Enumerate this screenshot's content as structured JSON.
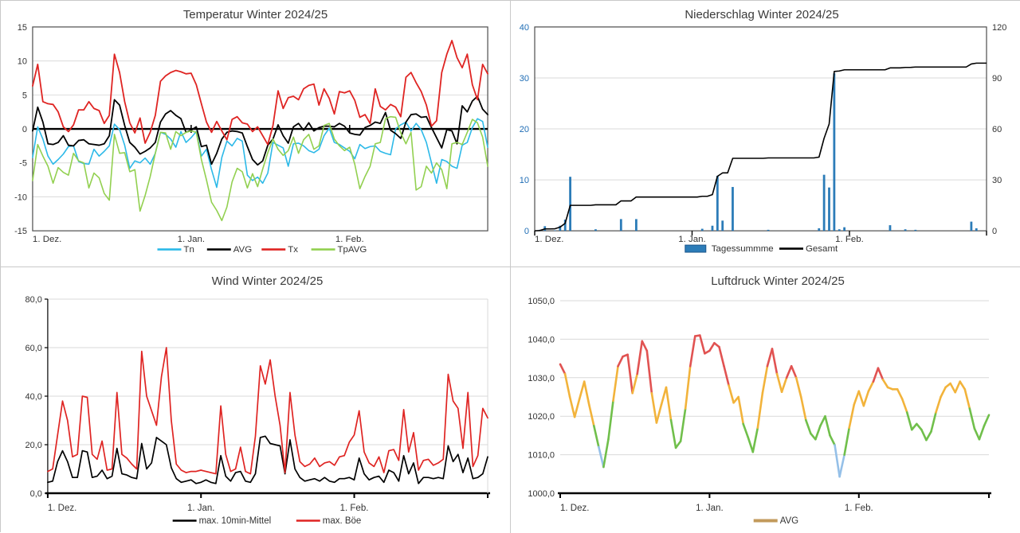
{
  "chart_data": [
    {
      "type": "line",
      "title": "Temperatur Winter 2024/25",
      "x_tick_labels": [
        "1. Dez.",
        "1. Jan.",
        "1. Feb."
      ],
      "x_tick_days": [
        0,
        31,
        62
      ],
      "n_days": 90,
      "ylim": [
        -15,
        15
      ],
      "yticks": [
        {
          "v": 15,
          "label": "15"
        },
        {
          "v": 10,
          "label": "10"
        },
        {
          "v": 5,
          "label": "5"
        },
        {
          "v": 0,
          "label": "0"
        },
        {
          "v": -5,
          "label": "-5"
        },
        {
          "v": -10,
          "label": "-10"
        },
        {
          "v": -15,
          "label": "-15"
        }
      ],
      "zero_line": true,
      "grid_color": "#d9d9d9",
      "series": [
        {
          "name": "Tn",
          "color": "#2cb9e8",
          "width": 1.6,
          "values": [
            -4.2,
            0.3,
            -1.5,
            -4.0,
            -5.2,
            -4.5,
            -3.7,
            -2.6,
            -2.5,
            -4.8,
            -5.1,
            -5.2,
            -3.0,
            -4.0,
            -3.3,
            -2.5,
            0.7,
            -0.1,
            -2.4,
            -5.8,
            -4.7,
            -5.0,
            -4.3,
            -5.2,
            -3.6,
            -0.5,
            -0.8,
            -1.5,
            -2.7,
            -0.4,
            -2.0,
            -1.3,
            -0.4,
            -4.0,
            -3.0,
            -6.0,
            -8.6,
            -4.2,
            -1.8,
            -2.5,
            -1.4,
            -1.8,
            -6.8,
            -7.6,
            -7.1,
            -8.0,
            -6.5,
            -2.0,
            -2.4,
            -2.8,
            -5.5,
            -2.2,
            -2.1,
            -2.5,
            -3.2,
            -3.5,
            -3.0,
            -1.0,
            0.1,
            -2.0,
            -2.3,
            -2.8,
            -3.3,
            -4.4,
            -2.3,
            -2.9,
            -2.6,
            -2.5,
            -3.3,
            -3.6,
            -3.8,
            0.0,
            0.6,
            1.0,
            -0.3,
            0.8,
            -0.1,
            -2.0,
            -5.0,
            -8.0,
            -4.5,
            -4.8,
            -5.5,
            -5.8,
            -2.4,
            -2.0,
            0.2,
            1.5,
            1.1,
            -2.7
          ]
        },
        {
          "name": "AVG",
          "color": "#000000",
          "width": 1.8,
          "values": [
            -0.3,
            3.2,
            1.0,
            -2.2,
            -2.3,
            -2.0,
            -1.0,
            -2.4,
            -2.5,
            -1.7,
            -1.6,
            -2.2,
            -2.3,
            -2.4,
            -2.2,
            -1.0,
            4.3,
            3.5,
            0.5,
            -2.0,
            -2.7,
            -3.7,
            -3.3,
            -2.8,
            -2.0,
            1.0,
            2.2,
            2.7,
            2.0,
            1.5,
            -0.5,
            -0.2,
            0.3,
            -2.6,
            -2.4,
            -5.2,
            -3.6,
            -1.5,
            -0.5,
            -0.3,
            -0.4,
            -0.6,
            -2.6,
            -4.5,
            -5.3,
            -4.7,
            -2.4,
            -1.5,
            0.6,
            -1.0,
            -2.1,
            0.3,
            0.8,
            -0.2,
            0.9,
            -0.3,
            0.2,
            0.4,
            0.4,
            0.3,
            0.8,
            0.4,
            -0.6,
            -0.8,
            -0.9,
            0.2,
            0.5,
            1.0,
            0.8,
            2.4,
            -0.2,
            -0.7,
            -1.4,
            1.0,
            2.1,
            2.2,
            1.7,
            1.8,
            0.2,
            -1.3,
            -2.8,
            -0.1,
            -0.3,
            -2.2,
            3.4,
            2.5,
            4.1,
            4.8,
            2.9,
            2.1
          ]
        },
        {
          "name": "Tx",
          "color": "#df2422",
          "width": 1.8,
          "values": [
            6.3,
            9.5,
            4.0,
            3.7,
            3.6,
            2.5,
            0.3,
            -0.4,
            0.6,
            2.8,
            2.8,
            4.0,
            3.0,
            2.7,
            0.8,
            2.0,
            11.0,
            8.3,
            4.0,
            0.9,
            -0.6,
            1.6,
            -2.1,
            -0.5,
            2.0,
            7.0,
            7.8,
            8.3,
            8.6,
            8.4,
            8.1,
            8.2,
            6.5,
            3.7,
            1.0,
            -0.5,
            1.1,
            -0.3,
            -1.6,
            1.4,
            1.8,
            0.9,
            0.7,
            -0.4,
            0.3,
            -1.0,
            -2.3,
            0.5,
            5.6,
            3.0,
            4.6,
            4.8,
            4.3,
            5.9,
            6.4,
            6.6,
            3.5,
            5.9,
            4.5,
            2.2,
            5.5,
            5.3,
            5.6,
            4.2,
            1.7,
            2.1,
            0.8,
            5.9,
            3.3,
            2.8,
            3.6,
            3.2,
            1.8,
            7.6,
            8.3,
            6.8,
            5.5,
            3.5,
            0.4,
            1.2,
            8.3,
            11.0,
            13.0,
            10.5,
            9.0,
            11.0,
            6.5,
            4.3,
            9.5,
            8.1
          ]
        },
        {
          "name": "TpAVG",
          "color": "#92d050",
          "width": 1.6,
          "values": [
            -7.6,
            -2.3,
            -4.0,
            -5.5,
            -8.0,
            -5.7,
            -6.4,
            -6.8,
            -3.6,
            -4.7,
            -5.0,
            -8.7,
            -6.5,
            -7.2,
            -9.5,
            -10.5,
            -0.8,
            -3.6,
            -3.5,
            -6.3,
            -6.0,
            -12.1,
            -9.8,
            -7.0,
            -3.6,
            -0.5,
            -0.6,
            -3.0,
            -0.4,
            -1.0,
            -0.5,
            -0.3,
            -0.5,
            -4.5,
            -7.5,
            -10.8,
            -12.0,
            -13.5,
            -11.5,
            -7.8,
            -5.8,
            -6.3,
            -8.7,
            -6.6,
            -8.5,
            -5.9,
            -3.5,
            -1.5,
            -3.0,
            -3.9,
            -3.2,
            -1.2,
            -3.6,
            -1.6,
            -0.8,
            -3.0,
            -2.5,
            0.5,
            0.8,
            -1.5,
            -2.5,
            -3.2,
            -2.7,
            -5.2,
            -8.8,
            -7.0,
            -5.5,
            -2.2,
            -2.0,
            1.5,
            1.8,
            1.7,
            -0.6,
            -2.2,
            -0.5,
            -9.0,
            -8.5,
            -5.5,
            -6.5,
            -5.0,
            -6.0,
            -8.8,
            -2.2,
            -2.0,
            -2.3,
            -0.5,
            1.4,
            0.9,
            -1.2,
            -5.5
          ]
        }
      ],
      "legend": [
        {
          "label": "Tn",
          "color": "#2cb9e8",
          "swatch": "line"
        },
        {
          "label": "AVG",
          "color": "#000000",
          "swatch": "line"
        },
        {
          "label": "Tx",
          "color": "#df2422",
          "swatch": "line"
        },
        {
          "label": "TpAVG",
          "color": "#92d050",
          "swatch": "line"
        }
      ]
    },
    {
      "type": "bar-cum",
      "title": "Niederschlag Winter 2024/25",
      "x_tick_labels": [
        "1. Dez.",
        "1. Jan.",
        "1. Feb."
      ],
      "x_tick_days": [
        0,
        31,
        62
      ],
      "n_days": 90,
      "grid_color": "#d9d9d9",
      "left_axis": {
        "lim": [
          0,
          40
        ],
        "label_color": "#1f6db5",
        "ticks": [
          {
            "v": 40,
            "label": "40"
          },
          {
            "v": 30,
            "label": "30"
          },
          {
            "v": 20,
            "label": "20"
          },
          {
            "v": 10,
            "label": "10"
          },
          {
            "v": 0,
            "label": "0"
          }
        ]
      },
      "right_axis": {
        "lim": [
          0,
          120
        ],
        "label_color": "#333333",
        "ticks": [
          {
            "v": 120,
            "label": "120"
          },
          {
            "v": 90,
            "label": "90"
          },
          {
            "v": 60,
            "label": "60"
          },
          {
            "v": 30,
            "label": "30"
          },
          {
            "v": 0,
            "label": "0"
          }
        ]
      },
      "bars": {
        "name": "Tagessummme",
        "color": "#2c7cb8",
        "border": "#1d568a",
        "values": [
          0,
          0.2,
          0.9,
          0,
          0.1,
          1.0,
          2.2,
          10.6,
          0,
          0,
          0,
          0,
          0.3,
          0,
          0,
          0,
          0,
          2.3,
          0,
          0,
          2.3,
          0,
          0,
          0,
          0,
          0,
          0,
          0,
          0,
          0,
          0,
          0,
          0,
          0.4,
          0,
          1.0,
          10.8,
          2.0,
          0,
          8.6,
          0,
          0,
          0,
          0,
          0,
          0,
          0.2,
          0,
          0,
          0,
          0,
          0,
          0,
          0,
          0,
          0,
          0.5,
          11.0,
          8.5,
          30.9,
          0.3,
          0.7,
          0,
          0,
          0,
          0,
          0,
          0,
          0,
          0,
          1.1,
          0,
          0,
          0.3,
          0,
          0.2,
          0,
          0,
          0,
          0,
          0,
          0,
          0,
          0,
          0,
          0,
          1.8,
          0.5,
          0,
          0
        ]
      },
      "cum_line": {
        "name": "Gesamt",
        "color": "#000000",
        "final_total_mm": 98.7
      },
      "legend": [
        {
          "label": "Tagessummme",
          "color": "#2c7cb8",
          "swatch": "bar"
        },
        {
          "label": "Gesamt",
          "color": "#000000",
          "swatch": "line"
        }
      ]
    },
    {
      "type": "line",
      "title": "Wind Winter 2024/25",
      "x_tick_labels": [
        "1. Dez.",
        "1. Jan.",
        "1. Feb."
      ],
      "x_tick_days": [
        0,
        31,
        62
      ],
      "n_days": 90,
      "ylim": [
        0,
        80
      ],
      "yticks": [
        {
          "v": 80,
          "label": "80,0"
        },
        {
          "v": 60,
          "label": "60,0"
        },
        {
          "v": 40,
          "label": "40,0"
        },
        {
          "v": 20,
          "label": "20,0"
        },
        {
          "v": 0,
          "label": "0,0"
        }
      ],
      "zero_line": false,
      "bottom_axis": true,
      "grid_color": "#d9d9d9",
      "series": [
        {
          "name": "max. 10min-Mittel",
          "color": "#000000",
          "width": 1.7,
          "values": [
            4.5,
            5,
            13,
            17.5,
            13,
            6.5,
            6.5,
            17.5,
            17,
            6.5,
            7,
            9.5,
            6,
            7,
            18.5,
            8,
            7.5,
            6.5,
            6,
            20.5,
            10,
            12.5,
            23,
            21.5,
            20,
            10.5,
            6,
            4.5,
            5,
            5.5,
            4,
            4.5,
            5.5,
            4.5,
            4,
            15.5,
            7,
            5,
            8.5,
            9,
            5,
            4.5,
            8,
            23,
            23.5,
            20.5,
            20,
            19.5,
            8,
            22,
            10,
            6.5,
            5,
            5.5,
            6,
            5,
            6.5,
            5,
            4.5,
            6,
            6,
            6.5,
            5.5,
            14.5,
            8,
            5.5,
            6.5,
            7,
            4.5,
            9.5,
            8.5,
            5,
            15.5,
            8,
            12.5,
            4,
            6.5,
            6.5,
            6,
            6.5,
            6,
            19.5,
            13,
            16,
            8.5,
            14.5,
            6,
            6.5,
            8,
            15
          ]
        },
        {
          "name": "max. Böe",
          "color": "#df2422",
          "width": 1.7,
          "values": [
            9,
            10,
            24,
            38,
            30,
            15,
            16,
            40,
            39.5,
            16,
            14,
            21.5,
            9.5,
            10,
            41.5,
            16,
            14.5,
            12,
            10,
            58.5,
            40,
            34,
            28,
            48,
            60,
            30,
            12,
            9.5,
            8.5,
            9,
            9,
            9.5,
            9,
            8.5,
            8,
            36,
            16,
            9,
            10,
            19,
            9,
            8,
            23.5,
            52.5,
            45,
            55,
            40,
            28,
            8.5,
            41.5,
            24,
            13,
            11,
            12,
            14.5,
            11,
            12.5,
            13,
            11.5,
            15,
            15.5,
            21,
            24,
            34,
            17,
            12.5,
            11,
            15,
            8.5,
            17.5,
            18,
            13.5,
            34.5,
            17,
            25,
            9.5,
            13.5,
            14,
            11.5,
            12.5,
            14,
            49,
            38,
            35,
            18.5,
            41.5,
            11,
            15.5,
            35,
            31
          ]
        }
      ],
      "legend": [
        {
          "label": "max. 10min-Mittel",
          "color": "#000000",
          "swatch": "line"
        },
        {
          "label": "max. Böe",
          "color": "#df2422",
          "swatch": "line"
        }
      ]
    },
    {
      "type": "threshold-line",
      "title": "Luftdruck Winter 2024/25",
      "x_tick_labels": [
        "1. Dez.",
        "1. Jan.",
        "1. Feb."
      ],
      "x_tick_days": [
        0,
        31,
        62
      ],
      "n_days": 90,
      "ylim": [
        1000,
        1050
      ],
      "yticks": [
        {
          "v": 1050,
          "label": "1050,0"
        },
        {
          "v": 1040,
          "label": "1040,0"
        },
        {
          "v": 1030,
          "label": "1030,0"
        },
        {
          "v": 1020,
          "label": "1020,0"
        },
        {
          "v": 1010,
          "label": "1010,0"
        },
        {
          "v": 1000,
          "label": "1000,0"
        }
      ],
      "bottom_axis": true,
      "grid_color": "#d9d9d9",
      "bands": [
        {
          "min": 1030,
          "color": "#e15352"
        },
        {
          "min": 1020,
          "color": "#f2b33b"
        },
        {
          "min": 1010,
          "color": "#70bf4b"
        },
        {
          "min": null,
          "color": "#95c0e8"
        }
      ],
      "values": [
        1033.5,
        1031.0,
        1025.0,
        1019.8,
        1024.5,
        1029.0,
        1023.0,
        1017.5,
        1012.0,
        1006.8,
        1014.0,
        1024.0,
        1033.0,
        1035.5,
        1036.0,
        1026.0,
        1031.0,
        1039.5,
        1037.0,
        1026.0,
        1018.3,
        1023.0,
        1027.5,
        1019.0,
        1011.8,
        1013.5,
        1022.0,
        1033.0,
        1040.8,
        1041.0,
        1036.3,
        1037.0,
        1039.0,
        1038.0,
        1033.0,
        1028.0,
        1023.5,
        1025.0,
        1018.0,
        1014.5,
        1010.7,
        1017.0,
        1026.0,
        1033.0,
        1037.5,
        1031.0,
        1026.3,
        1030.0,
        1033.0,
        1030.0,
        1025.0,
        1019.0,
        1015.5,
        1014.0,
        1017.5,
        1020.0,
        1015.0,
        1012.5,
        1004.3,
        1010.0,
        1017.0,
        1023.0,
        1026.5,
        1022.7,
        1026.5,
        1029.0,
        1032.5,
        1029.5,
        1027.5,
        1027.0,
        1027.0,
        1024.5,
        1021.0,
        1016.5,
        1018.0,
        1016.5,
        1013.8,
        1016.0,
        1021.0,
        1025.0,
        1027.5,
        1028.5,
        1026.2,
        1029.0,
        1027.0,
        1022.0,
        1016.8,
        1014.0,
        1017.5,
        1020.3
      ],
      "legend": [
        {
          "label": "AVG",
          "color": "#c29a5b",
          "swatch": "thickline"
        }
      ]
    }
  ]
}
